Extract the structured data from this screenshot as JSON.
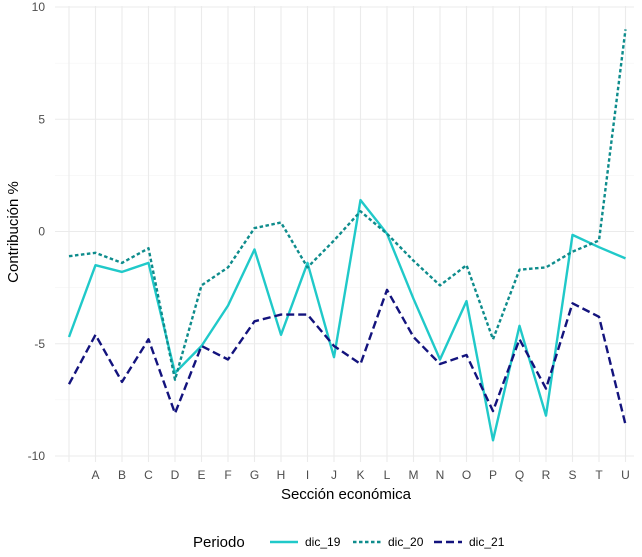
{
  "chart_data": {
    "type": "line",
    "title": "",
    "xlabel": "Sección económica",
    "ylabel": "Contribución %",
    "categories": [
      "",
      "A",
      "B",
      "C",
      "D",
      "E",
      "F",
      "G",
      "H",
      "I",
      "J",
      "K",
      "L",
      "M",
      "N",
      "O",
      "P",
      "Q",
      "R",
      "S",
      "T",
      "U"
    ],
    "ylim": [
      -10.5,
      10
    ],
    "yticks": [
      -10,
      -5,
      0,
      5,
      10
    ],
    "grid": true,
    "legend": {
      "title": "Periodo",
      "position": "bottom"
    },
    "series": [
      {
        "name": "dic_19",
        "color": "#20c9c9",
        "dash": "solid",
        "values": [
          -4.7,
          -1.5,
          -1.8,
          -1.4,
          -6.3,
          -5.1,
          -3.3,
          -0.8,
          -4.6,
          -1.4,
          -5.6,
          1.4,
          -0.1,
          -3.0,
          -5.7,
          -3.1,
          -9.3,
          -4.2,
          -8.2,
          -0.15,
          -0.7,
          -1.2
        ]
      },
      {
        "name": "dic_20",
        "color": "#0e8c8c",
        "dash": "dotted",
        "values": [
          -1.1,
          -0.95,
          -1.4,
          -0.75,
          -6.6,
          -2.4,
          -1.6,
          0.15,
          0.4,
          -1.6,
          -0.4,
          0.9,
          -0.1,
          -1.3,
          -2.4,
          -1.5,
          -4.8,
          -1.7,
          -1.6,
          -0.9,
          -0.4,
          9.0
        ]
      },
      {
        "name": "dic_21",
        "color": "#13137d",
        "dash": "dashed",
        "values": [
          -6.8,
          -4.6,
          -6.7,
          -4.8,
          -8.1,
          -5.1,
          -5.7,
          -4.0,
          -3.7,
          -3.7,
          -5.1,
          -5.9,
          -2.6,
          -4.7,
          -5.9,
          -5.5,
          -8.0,
          -4.8,
          -7.0,
          -3.2,
          -3.8,
          -8.6
        ]
      }
    ]
  }
}
